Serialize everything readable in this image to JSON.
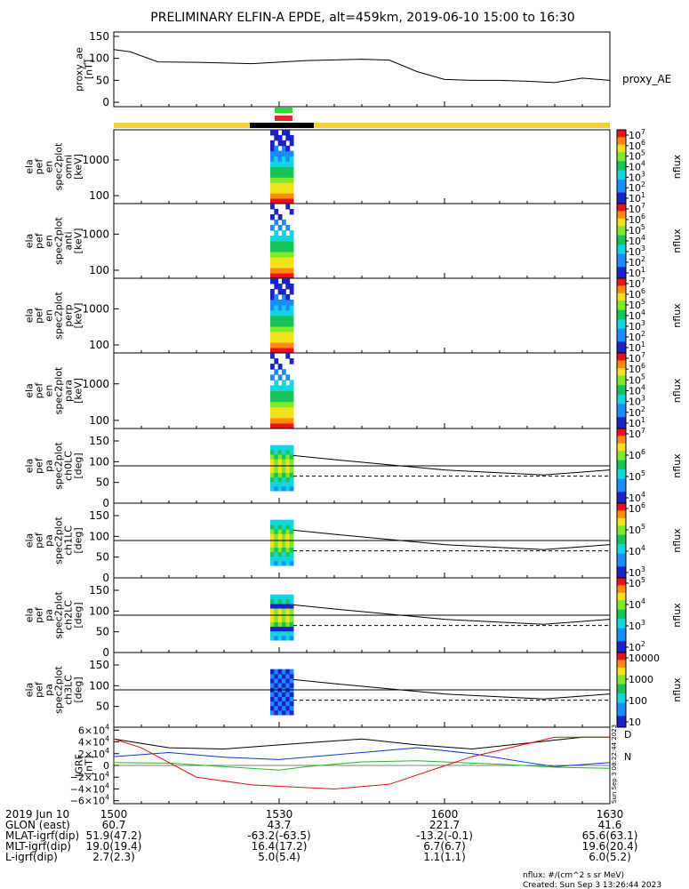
{
  "title": "PRELIMINARY ELFIN-A EPDE, alt=459km, 2019-06-10 15:00 to 16:30",
  "colors": {
    "orbit_bar": "#f4d22a",
    "science_zone": "#000000",
    "green_flag": "#22dd33",
    "red_flag": "#ee2222",
    "trace_red": "#dd1111",
    "trace_blue": "#1133cc",
    "trace_green": "#22bb22",
    "trace_black": "#000000"
  },
  "chart_data": {
    "type": "multi-panel spectrogram / line",
    "time_range": [
      "15:00",
      "16:30"
    ],
    "panels": [
      {
        "id": "proxy_ae",
        "type": "line",
        "ylabel": [
          "proxy_ae",
          "[nT]"
        ],
        "legend": "proxy_AE",
        "yticks": [
          "150",
          "100",
          "50",
          "0"
        ],
        "ylim": [
          -10,
          160
        ],
        "x_min": [
          0,
          3,
          8,
          15,
          25,
          35,
          45,
          50,
          55,
          60,
          65,
          70,
          75,
          80,
          85,
          90
        ],
        "values": [
          120,
          115,
          92,
          91,
          88,
          95,
          98,
          96,
          70,
          52,
          50,
          50,
          48,
          45,
          55,
          50
        ]
      },
      {
        "id": "en_omni",
        "type": "spectrogram",
        "ylabel": [
          "ela",
          "pef",
          "en",
          "spec2plot",
          "omni",
          "[keV]"
        ],
        "yticks": [
          "1000",
          "100"
        ],
        "ylim_keV": [
          60,
          7000
        ],
        "cbar_ticks": [
          "10^7",
          "10^6",
          "10^5",
          "10^4",
          "10^3",
          "10^2",
          "10^1"
        ],
        "cbar_label": "nflux"
      },
      {
        "id": "en_anti",
        "type": "spectrogram",
        "ylabel": [
          "ela",
          "pef",
          "en",
          "spec2plot",
          "anti",
          "[keV]"
        ],
        "yticks": [
          "1000",
          "100"
        ],
        "ylim_keV": [
          60,
          7000
        ],
        "cbar_ticks": [
          "10^7",
          "10^6",
          "10^5",
          "10^4",
          "10^3",
          "10^2",
          "10^1"
        ],
        "cbar_label": "nflux"
      },
      {
        "id": "en_perp",
        "type": "spectrogram",
        "ylabel": [
          "ela",
          "pef",
          "en",
          "spec2plot",
          "perp",
          "[keV]"
        ],
        "yticks": [
          "1000",
          "100"
        ],
        "ylim_keV": [
          60,
          7000
        ],
        "cbar_ticks": [
          "10^7",
          "10^6",
          "10^5",
          "10^4",
          "10^3",
          "10^2",
          "10^1"
        ],
        "cbar_label": "nflux"
      },
      {
        "id": "en_para",
        "type": "spectrogram",
        "ylabel": [
          "ela",
          "pef",
          "en",
          "spec2plot",
          "para",
          "[keV]"
        ],
        "yticks": [
          "1000",
          "100"
        ],
        "ylim_keV": [
          60,
          7000
        ],
        "cbar_ticks": [
          "10^7",
          "10^6",
          "10^5",
          "10^4",
          "10^3",
          "10^2",
          "10^1"
        ],
        "cbar_label": "nflux"
      },
      {
        "id": "ch0LC",
        "type": "pitch-angle",
        "ylabel": [
          "ela",
          "pef",
          "pa",
          "spec2plot",
          "ch0LC",
          "[deg]"
        ],
        "yticks": [
          "150",
          "100",
          "50",
          "0"
        ],
        "ylim_deg": [
          0,
          180
        ],
        "cbar_ticks": [
          "10^7",
          "10^6",
          "10^5",
          "10^4"
        ],
        "cbar_label": "nflux"
      },
      {
        "id": "ch1LC",
        "type": "pitch-angle",
        "ylabel": [
          "ela",
          "pef",
          "pa",
          "spec2plot",
          "ch1LC",
          "[deg]"
        ],
        "yticks": [
          "150",
          "100",
          "50",
          "0"
        ],
        "ylim_deg": [
          0,
          180
        ],
        "cbar_ticks": [
          "10^6",
          "10^5",
          "10^4",
          "10^3"
        ],
        "cbar_label": "nflux"
      },
      {
        "id": "ch2LC",
        "type": "pitch-angle",
        "ylabel": [
          "ela",
          "pef",
          "pa",
          "spec2plot",
          "ch2LC",
          "[deg]"
        ],
        "yticks": [
          "150",
          "100",
          "50",
          "0"
        ],
        "ylim_deg": [
          0,
          180
        ],
        "cbar_ticks": [
          "10^5",
          "10^4",
          "10^3",
          "10^2"
        ],
        "cbar_label": "nflux"
      },
      {
        "id": "ch3LC",
        "type": "pitch-angle",
        "ylabel": [
          "ela",
          "pef",
          "pa",
          "spec2plot",
          "ch3LC",
          "[deg]"
        ],
        "yticks": [
          "150",
          "100",
          "50"
        ],
        "ylim_deg": [
          0,
          180
        ],
        "cbar_ticks": [
          "10000",
          "1000",
          "100",
          "10"
        ],
        "cbar_label": "nflux"
      },
      {
        "id": "igrf",
        "type": "line",
        "ylabel": [
          "IGRF",
          "[nT]"
        ],
        "yticks": [
          "6×10^4",
          "4×10^4",
          "2×10^4",
          "0",
          "−2×10^4",
          "−4×10^4",
          "−6×10^4"
        ],
        "ylim": [
          -65000,
          65000
        ],
        "right_labels": [
          "D",
          "N",
          "Sun Sep 3 08:22:44 2023"
        ],
        "series": [
          {
            "name": "black",
            "x_min": [
              0,
              10,
              20,
              30,
              45,
              55,
              65,
              75,
              85,
              90
            ],
            "values": [
              45000,
              30000,
              28000,
              35000,
              45000,
              35000,
              28000,
              38000,
              48000,
              48000
            ]
          },
          {
            "name": "blue",
            "x_min": [
              0,
              10,
              20,
              30,
              45,
              55,
              65,
              75,
              80,
              90
            ],
            "values": [
              15000,
              22000,
              14000,
              10000,
              22000,
              30000,
              20000,
              5000,
              -2000,
              5000
            ]
          },
          {
            "name": "green",
            "x_min": [
              0,
              10,
              20,
              30,
              35,
              45,
              55,
              70,
              80,
              90
            ],
            "values": [
              5000,
              4000,
              -2000,
              -8000,
              -2000,
              6000,
              8000,
              2000,
              -3000,
              -5000
            ]
          },
          {
            "name": "red",
            "x_min": [
              0,
              5,
              15,
              25,
              40,
              50,
              65,
              80,
              90
            ],
            "values": [
              45000,
              30000,
              -20000,
              -33000,
              -40000,
              -32000,
              15000,
              48000,
              48000
            ]
          }
        ]
      }
    ],
    "footer": {
      "rows": [
        {
          "label": "2019 Jun 10",
          "vals": [
            "1500",
            "1530",
            "1600",
            "1630"
          ]
        },
        {
          "label": "GLON (east)",
          "vals": [
            "60.7",
            "43.7",
            "221.7",
            "41.6"
          ]
        },
        {
          "label": "MLAT-igrf(dip)",
          "vals": [
            "51.9(47.2)",
            "-63.2(-63.5)",
            "-13.2(-0.1)",
            "65.6(63.1)"
          ]
        },
        {
          "label": "MLT-igrf(dip)",
          "vals": [
            "19.0(19.4)",
            "16.4(17.2)",
            "6.7(6.7)",
            "19.6(20.4)"
          ]
        },
        {
          "label": "L-igrf(dip)",
          "vals": [
            "2.7(2.3)",
            "5.0(5.4)",
            "1.1(1.1)",
            "6.0(5.2)"
          ]
        }
      ],
      "units_note": "nflux: #/(cm^2 s sr MeV)",
      "created": "Created: Sun Sep  3 13:26:44 2023"
    }
  }
}
